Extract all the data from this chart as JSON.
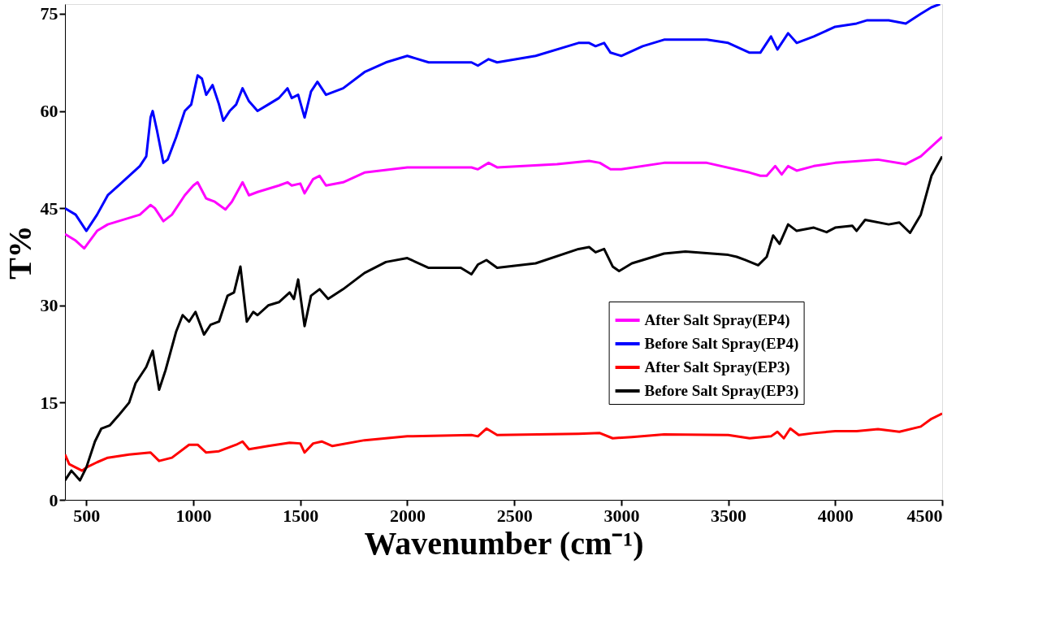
{
  "chart_data": {
    "type": "line",
    "xlabel": "Wavenumber (cm⁻¹)",
    "ylabel": "T%",
    "xlim": [
      400,
      4500
    ],
    "ylim": [
      0,
      76.5
    ],
    "xticks": [
      500,
      1000,
      1500,
      2000,
      2500,
      3000,
      3500,
      4000,
      4500
    ],
    "yticks": [
      0,
      15,
      30,
      45,
      60,
      75
    ],
    "grid": false,
    "legend": "bottom right",
    "marker": "none",
    "line_style": "solid",
    "series": [
      {
        "name": "After Salt Spray(EP4)",
        "color": "#ff00ff",
        "x": [
          400,
          450,
          490,
          550,
          600,
          700,
          750,
          800,
          820,
          860,
          900,
          960,
          1000,
          1020,
          1060,
          1100,
          1150,
          1180,
          1230,
          1260,
          1300,
          1400,
          1440,
          1460,
          1500,
          1520,
          1560,
          1590,
          1620,
          1700,
          1800,
          2000,
          2300,
          2330,
          2380,
          2420,
          2700,
          2850,
          2900,
          2950,
          3000,
          3200,
          3400,
          3600,
          3650,
          3680,
          3720,
          3750,
          3780,
          3820,
          3900,
          4000,
          4200,
          4330,
          4400,
          4450,
          4500
        ],
        "values": [
          41,
          40,
          38.8,
          41.5,
          42.5,
          43.5,
          44,
          45.5,
          45,
          43,
          44,
          47,
          48.5,
          49,
          46.5,
          46,
          44.8,
          46,
          49,
          47,
          47.5,
          48.5,
          49,
          48.5,
          48.8,
          47.3,
          49.5,
          50,
          48.5,
          49,
          50.5,
          51.3,
          51.3,
          51,
          52,
          51.3,
          51.8,
          52.3,
          52,
          51,
          51,
          52,
          52,
          50.5,
          50,
          50,
          51.5,
          50.2,
          51.5,
          50.8,
          51.5,
          52,
          52.5,
          51.8,
          53,
          54.5,
          56
        ]
      },
      {
        "name": "Before Salt Spray(EP4)",
        "color": "#0000ff",
        "x": [
          400,
          450,
          500,
          550,
          600,
          650,
          700,
          750,
          780,
          800,
          810,
          830,
          860,
          880,
          920,
          960,
          990,
          1020,
          1040,
          1060,
          1090,
          1120,
          1140,
          1170,
          1200,
          1230,
          1260,
          1300,
          1350,
          1400,
          1440,
          1460,
          1490,
          1520,
          1550,
          1580,
          1620,
          1700,
          1800,
          1900,
          2000,
          2100,
          2200,
          2300,
          2330,
          2380,
          2420,
          2600,
          2800,
          2850,
          2880,
          2920,
          2950,
          3000,
          3100,
          3200,
          3400,
          3500,
          3600,
          3650,
          3700,
          3730,
          3780,
          3820,
          3900,
          4000,
          4100,
          4150,
          4250,
          4330,
          4400,
          4450,
          4490
        ],
        "values": [
          45,
          44,
          41.5,
          44,
          47,
          48.5,
          50,
          51.5,
          53,
          59,
          60,
          57,
          52,
          52.5,
          56,
          60,
          61,
          65.5,
          65,
          62.5,
          64,
          61,
          58.5,
          60,
          61,
          63.5,
          61.5,
          60,
          61,
          62,
          63.5,
          62,
          62.5,
          59,
          63,
          64.5,
          62.5,
          63.5,
          66,
          67.5,
          68.5,
          67.5,
          67.5,
          67.5,
          67,
          68,
          67.5,
          68.5,
          70.5,
          70.5,
          70,
          70.5,
          69,
          68.5,
          70,
          71,
          71,
          70.5,
          69,
          69,
          71.5,
          69.5,
          72,
          70.5,
          71.5,
          73,
          73.5,
          74,
          74,
          73.5,
          75,
          76,
          76.5
        ]
      },
      {
        "name": "After Salt Spray(EP3)",
        "color": "#ff0000",
        "x": [
          400,
          420,
          450,
          480,
          500,
          550,
          600,
          700,
          800,
          840,
          900,
          980,
          1020,
          1060,
          1120,
          1200,
          1230,
          1260,
          1350,
          1450,
          1500,
          1520,
          1560,
          1600,
          1650,
          1800,
          2000,
          2300,
          2330,
          2370,
          2420,
          2800,
          2900,
          2960,
          3050,
          3200,
          3500,
          3600,
          3700,
          3730,
          3760,
          3790,
          3830,
          3900,
          4000,
          4100,
          4200,
          4300,
          4400,
          4450,
          4500
        ],
        "values": [
          7,
          5.5,
          5,
          4.5,
          5,
          5.8,
          6.5,
          7,
          7.3,
          6,
          6.5,
          8.5,
          8.5,
          7.3,
          7.5,
          8.5,
          9,
          7.8,
          8.3,
          8.8,
          8.7,
          7.3,
          8.7,
          9,
          8.3,
          9.2,
          9.8,
          10,
          9.8,
          11,
          10,
          10.2,
          10.3,
          9.5,
          9.7,
          10.1,
          10,
          9.5,
          9.8,
          10.5,
          9.5,
          11,
          10,
          10.3,
          10.6,
          10.6,
          10.9,
          10.5,
          11.3,
          12.5,
          13.3
        ]
      },
      {
        "name": "Before Salt Spray(EP3)",
        "color": "#000000",
        "x": [
          400,
          430,
          470,
          500,
          540,
          570,
          610,
          650,
          700,
          730,
          780,
          810,
          840,
          870,
          920,
          950,
          980,
          1010,
          1050,
          1080,
          1120,
          1160,
          1190,
          1220,
          1250,
          1280,
          1300,
          1350,
          1400,
          1450,
          1470,
          1490,
          1520,
          1550,
          1590,
          1630,
          1700,
          1800,
          1900,
          2000,
          2100,
          2250,
          2300,
          2330,
          2370,
          2420,
          2600,
          2800,
          2850,
          2880,
          2920,
          2960,
          2990,
          3050,
          3200,
          3300,
          3500,
          3540,
          3580,
          3640,
          3680,
          3710,
          3740,
          3780,
          3820,
          3900,
          3960,
          4000,
          4080,
          4100,
          4140,
          4250,
          4300,
          4350,
          4400,
          4450,
          4500
        ],
        "values": [
          3,
          4.5,
          3,
          5,
          9,
          11,
          11.5,
          13,
          15,
          18,
          20.5,
          23,
          17,
          20,
          26,
          28.5,
          27.5,
          29,
          25.5,
          27,
          27.5,
          31.5,
          32,
          36,
          27.5,
          29,
          28.5,
          30,
          30.5,
          32,
          31,
          34,
          26.8,
          31.5,
          32.5,
          31,
          32.5,
          35,
          36.7,
          37.3,
          35.8,
          35.8,
          34.8,
          36.3,
          37,
          35.8,
          36.5,
          38.7,
          39,
          38.2,
          38.7,
          36,
          35.3,
          36.5,
          38,
          38.3,
          37.8,
          37.5,
          37,
          36.2,
          37.5,
          40.8,
          39.5,
          42.5,
          41.5,
          42,
          41.3,
          42,
          42.3,
          41.5,
          43.2,
          42.5,
          42.8,
          41.2,
          44,
          50,
          53
        ]
      }
    ]
  }
}
